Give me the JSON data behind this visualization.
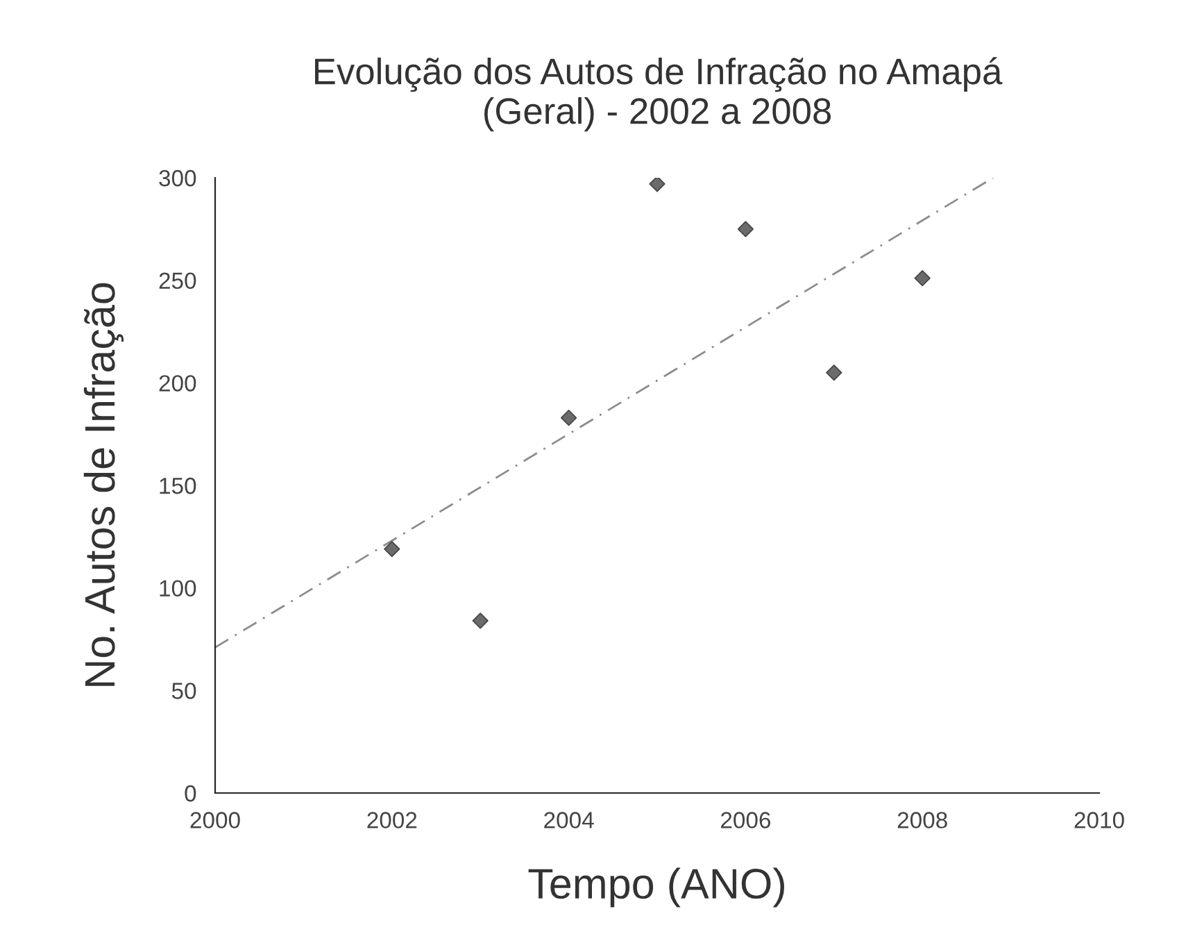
{
  "chart_data": {
    "type": "scatter",
    "title": "Evolução dos Autos de Infração no Amapá\n(Geral) - 2002 a 2008",
    "xlabel": "Tempo (ANO)",
    "ylabel": "No. Autos de Infração",
    "series": [
      {
        "x": [
          2002,
          2003,
          2004,
          2005,
          2006,
          2007,
          2008
        ],
        "values": [
          119,
          84,
          183,
          297,
          275,
          205,
          251
        ],
        "color": "#6b6b6b",
        "marker": "diamond"
      },
      {
        "type": "line",
        "x": [
          2000,
          2008.8
        ],
        "values": [
          71,
          300
        ],
        "color": "#8c8c8c",
        "line_style": "dashed"
      }
    ],
    "xlim": [
      2000,
      2010
    ],
    "xticks": [
      2000,
      2002,
      2004,
      2006,
      2008,
      2010
    ],
    "ylim": [
      0,
      300
    ],
    "yticks": [
      0,
      50,
      100,
      150,
      200,
      250,
      300
    ],
    "grid": false,
    "legend": false
  }
}
